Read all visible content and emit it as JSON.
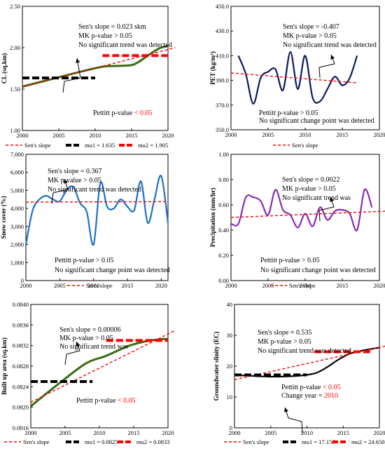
{
  "chart_data": [
    {
      "type": "line",
      "ylabel": "CL (sq.km)",
      "xlim": [
        2000,
        2020
      ],
      "xticks": [
        2000,
        2005,
        2010,
        2015,
        2020
      ],
      "ylim": [
        1.0,
        2.5
      ],
      "yticks": [
        "1.00",
        "1.50",
        "2.00",
        "2.50"
      ],
      "series": [
        {
          "name": "",
          "role": "data",
          "color": "#3a6b14",
          "x": [
            2000,
            2004,
            2008,
            2011,
            2013,
            2015,
            2016,
            2017,
            2018,
            2019,
            2020
          ],
          "y": [
            1.53,
            1.62,
            1.71,
            1.77,
            1.78,
            1.79,
            1.83,
            1.89,
            1.95,
            2.0,
            2.02
          ]
        },
        {
          "name": "Sen's slope",
          "role": "trend",
          "color": "#ff0000",
          "x": [
            2000,
            2021
          ],
          "y": [
            1.53,
            2.0
          ]
        },
        {
          "name": "mu1 = 1.635",
          "role": "mean",
          "color": "#000000",
          "x": [
            2000,
            2010
          ],
          "y": [
            1.635,
            1.635
          ]
        },
        {
          "name": "mu2 = 1.905",
          "role": "mean",
          "color": "#ff0000",
          "x": [
            2011,
            2020
          ],
          "y": [
            1.905,
            1.905
          ]
        }
      ],
      "annotations": [
        "Sen's slope = 0.023 skm",
        "MK p-value > 0.05",
        "No significant trend was detected"
      ],
      "pettitt": {
        "prefix": "Pettitt p-value ",
        "highlight": "< 0.05",
        "extra": []
      }
    },
    {
      "type": "line",
      "ylabel": "PET (kg/m²)",
      "xlim": [
        2000,
        2020
      ],
      "xticks": [
        2000,
        2005,
        2010,
        2015,
        2020
      ],
      "ylim": [
        350,
        450
      ],
      "yticks": [
        "350.0",
        "370.0",
        "390.0",
        "410.0",
        "430.0",
        "450.0"
      ],
      "series": [
        {
          "name": "",
          "role": "data",
          "color": "#0d1a5c",
          "x": [
            2001,
            2002,
            2003,
            2004,
            2005,
            2006,
            2007,
            2008,
            2009,
            2010,
            2011,
            2012,
            2013,
            2014,
            2015,
            2016,
            2017
          ],
          "y": [
            410,
            395,
            371,
            392,
            397,
            399,
            382,
            413,
            383,
            410,
            376,
            373,
            383,
            393,
            386,
            392,
            410
          ]
        },
        {
          "name": "Sen's slope",
          "role": "trend",
          "color": "#ff0000",
          "x": [
            2000,
            2017
          ],
          "y": [
            396,
            388
          ]
        }
      ],
      "annotations": [
        "Sen's slope = -0.407",
        "MK p-value > 0.05",
        "No significant trend was detected"
      ],
      "pettitt": {
        "prefix": "Pettitt p-value > 0.05",
        "highlight": "",
        "extra": [
          "No significant change point was detected"
        ]
      }
    },
    {
      "type": "line",
      "ylabel": "Snow cover (%)",
      "xlim": [
        2000,
        2021
      ],
      "xticks": [
        2000,
        2005,
        2010,
        2015,
        2020
      ],
      "ylim": [
        0,
        7000
      ],
      "yticks": [
        "0",
        "1,000",
        "2,000",
        "3,000",
        "4,000",
        "5,000",
        "6,000",
        "7,000"
      ],
      "series": [
        {
          "name": "",
          "role": "data",
          "color": "#1f6fc4",
          "x": [
            2000,
            2001,
            2002,
            2003,
            2004,
            2005,
            2006,
            2007,
            2008,
            2009,
            2010,
            2011,
            2012,
            2013,
            2014,
            2015,
            2016,
            2017,
            2018,
            2019,
            2020,
            2021
          ],
          "y": [
            2000,
            3900,
            4500,
            4700,
            4500,
            4400,
            5000,
            5200,
            4300,
            3800,
            2000,
            5400,
            4100,
            4000,
            4500,
            4100,
            3900,
            5500,
            3200,
            4500,
            5800,
            3200
          ]
        },
        {
          "name": "Sen's slope",
          "role": "trend",
          "color": "#ff0000",
          "x": [
            2000,
            2021
          ],
          "y": [
            4350,
            4380
          ]
        }
      ],
      "annotations": [
        "Sen's slope = 0.367",
        "MK p-value > 0.05",
        "No significant trend was detected"
      ],
      "pettitt": {
        "prefix": "Pettitt p-value > 0.05",
        "highlight": "",
        "extra": [
          "No significant change point was detected"
        ]
      }
    },
    {
      "type": "line",
      "ylabel": "Precipitation (mm/hr)",
      "xlim": [
        2000,
        2020
      ],
      "xticks": [
        2000,
        2005,
        2010,
        2015,
        2020
      ],
      "ylim": [
        0,
        1.0
      ],
      "yticks": [
        "0.00",
        "0.20",
        "0.40",
        "0.60",
        "0.80",
        "1.00"
      ],
      "series": [
        {
          "name": "",
          "role": "data",
          "color": "#8a2bb5",
          "x": [
            2000,
            2001,
            2002,
            2003,
            2004,
            2005,
            2006,
            2007,
            2008,
            2009,
            2010,
            2011,
            2012,
            2013,
            2014,
            2015,
            2016,
            2017,
            2018,
            2019
          ],
          "y": [
            0.45,
            0.45,
            0.66,
            0.66,
            0.63,
            0.52,
            0.72,
            0.56,
            0.52,
            0.42,
            0.53,
            0.43,
            0.58,
            0.48,
            0.55,
            0.56,
            0.53,
            0.4,
            0.72,
            0.58
          ]
        },
        {
          "name": "Sen's slope",
          "role": "trend",
          "color": "#ff0000",
          "x": [
            2000,
            2021
          ],
          "y": [
            0.5,
            0.55
          ]
        }
      ],
      "annotations": [
        "Sen's slope = 0.0022",
        "MK p-value > 0.05",
        "No significant trend was"
      ],
      "pettitt": {
        "prefix": "Pettitt p-value > 0.05",
        "highlight": "",
        "extra": [
          "No significant change point was detected"
        ]
      }
    },
    {
      "type": "line",
      "ylabel": "Built up area (sq.km)",
      "xlim": [
        2000,
        2020
      ],
      "xticks": [
        2000,
        2005,
        2010,
        2015,
        2020
      ],
      "ylim": [
        0.0816,
        0.084
      ],
      "yticks": [
        "0.0816",
        "0.0820",
        "0.0824",
        "0.0828",
        "0.0832",
        "0.0836",
        "0.0840"
      ],
      "series": [
        {
          "name": "",
          "role": "data",
          "color": "#3a6b14",
          "x": [
            2000,
            2004,
            2008,
            2011,
            2014,
            2016,
            2018,
            2020
          ],
          "y": [
            0.08202,
            0.08245,
            0.08285,
            0.083,
            0.08318,
            0.08326,
            0.08331,
            0.08333
          ]
        },
        {
          "name": "Sen's slope",
          "role": "trend",
          "color": "#ff0000",
          "x": [
            2000,
            2021
          ],
          "y": [
            0.0821,
            0.08349
          ]
        },
        {
          "name": "mu1 = 0.0825",
          "role": "mean",
          "color": "#000000",
          "x": [
            2000,
            2009
          ],
          "y": [
            0.0825,
            0.0825
          ]
        },
        {
          "name": "mu2 = 0.0833",
          "role": "mean",
          "color": "#ff0000",
          "x": [
            2011,
            2020
          ],
          "y": [
            0.0833,
            0.0833
          ]
        }
      ],
      "annotations": [
        "Sen's slope = 0.00006",
        "MK p-value > 0.05",
        "No significant trend was"
      ],
      "pettitt": {
        "prefix": "Pettitt p-value ",
        "highlight": "< 0.05",
        "extra": []
      }
    },
    {
      "type": "line",
      "ylabel": "Groundwater slinity (EC)",
      "xlim": [
        2000,
        2020
      ],
      "xticks": [
        2000,
        2005,
        2010,
        2015,
        2020
      ],
      "ylim": [
        0,
        40
      ],
      "yticks": [
        "0",
        "10",
        "20",
        "30",
        "40"
      ],
      "series": [
        {
          "name": "",
          "role": "data",
          "color": "#000000",
          "x": [
            2000,
            2005,
            2009,
            2011,
            2012,
            2013,
            2014,
            2015,
            2016,
            2018,
            2020
          ],
          "y": [
            17.1,
            16.6,
            16.9,
            17.6,
            18.6,
            20.0,
            21.6,
            23.0,
            24.1,
            25.2,
            26.0
          ]
        },
        {
          "name": "Sen's slope",
          "role": "trend",
          "color": "#ff0000",
          "x": [
            2000,
            2021
          ],
          "y": [
            15.6,
            26.6
          ]
        },
        {
          "name": "mu1 = 17.150",
          "role": "mean",
          "color": "#000000",
          "x": [
            2000,
            2010
          ],
          "y": [
            17.15,
            17.15
          ]
        },
        {
          "name": "mu2 = 24.650",
          "role": "mean",
          "color": "#ff0000",
          "x": [
            2011,
            2019
          ],
          "y": [
            24.65,
            24.65
          ]
        }
      ],
      "annotations": [
        "Sen's slope = 0.535",
        "MK p-value > 0.05",
        "No significant trend was detected"
      ],
      "pettitt": {
        "prefix": "Pettitt p-value ",
        "highlight": "< 0.05",
        "extra": [
          {
            "prefix": "Change year = ",
            "highlight": "2010"
          }
        ]
      }
    }
  ]
}
